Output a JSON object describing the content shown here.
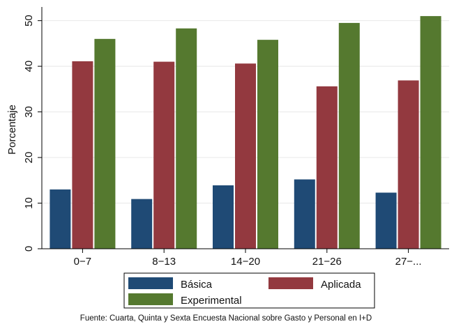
{
  "chart_data": {
    "type": "bar",
    "ylabel": "Porcentaje",
    "xlabel": "",
    "ylim": [
      0,
      53
    ],
    "yticks": [
      0,
      10,
      20,
      30,
      40,
      50
    ],
    "grid": true,
    "legend_position": "bottom",
    "categories": [
      "0−7",
      "8−13",
      "14−20",
      "21−26",
      "27−..."
    ],
    "series": [
      {
        "name": "Básica",
        "color": "#1f4a75",
        "values": [
          13.0,
          10.9,
          13.9,
          15.2,
          12.3
        ]
      },
      {
        "name": "Aplicada",
        "color": "#93393f",
        "values": [
          41.1,
          41.0,
          40.6,
          35.6,
          36.9
        ]
      },
      {
        "name": "Experimental",
        "color": "#55792f",
        "values": [
          46.0,
          48.3,
          45.8,
          49.5,
          51.0
        ]
      }
    ],
    "note": "Fuente: Cuarta, Quinta y Sexta Encuesta Nacional sobre Gasto y Personal en I+D"
  }
}
